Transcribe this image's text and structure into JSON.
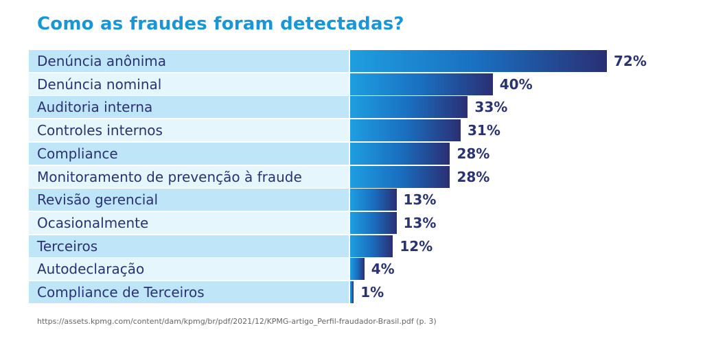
{
  "chart_data": {
    "type": "bar",
    "orientation": "horizontal",
    "title": "Como as fraudes foram detectadas?",
    "categories": [
      "Denúncia anônima",
      "Denúncia nominal",
      "Auditoria interna",
      "Controles internos",
      "Compliance",
      "Monitoramento de prevenção à fraude",
      "Revisão gerencial",
      "Ocasionalmente",
      "Terceiros",
      "Autodeclaração",
      "Compliance de Terceiros"
    ],
    "values": [
      72,
      40,
      33,
      31,
      28,
      28,
      13,
      13,
      12,
      4,
      1
    ],
    "value_labels": [
      "72%",
      "40%",
      "33%",
      "31%",
      "28%",
      "28%",
      "13%",
      "13%",
      "12%",
      "4%",
      "1%"
    ],
    "xlim": [
      0,
      72
    ],
    "grid": false,
    "legend": "none"
  },
  "footer": {
    "source": "https://assets.kpmg.com/content/dam/kpmg/br/pdf/2021/12/KPMG-artigo_Perfil-fraudador-Brasil.pdf (p. 3)"
  },
  "colors": {
    "title": "#1a96d4",
    "label_text": "#2a3270",
    "row_bg_dark": "#bfe6f8",
    "row_bg_light": "#e6f6fd",
    "bar_start": "#1e9ee0",
    "bar_end": "#2a2f74"
  }
}
